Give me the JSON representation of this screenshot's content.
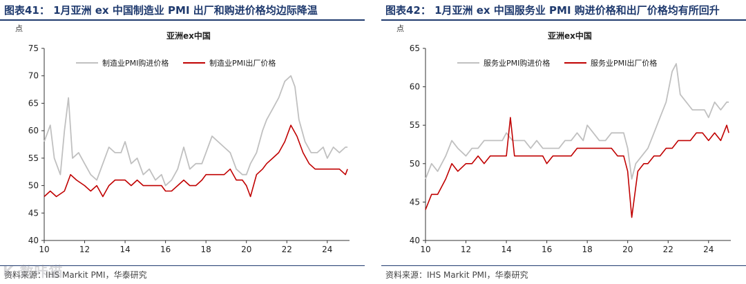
{
  "watermark": "K 数咔猫",
  "charts": [
    {
      "figure_title": "图表41： 1月亚洲 ex 中国制造业 PMI 出厂和购进价格均边际降温",
      "unit": "点",
      "source": "资料来源：IHS Markit PMI，华泰研究",
      "chart_data": {
        "type": "line",
        "title": "亚洲ex中国",
        "xlabel": "",
        "ylabel": "点",
        "x_ticks": [
          10,
          12,
          14,
          16,
          18,
          20,
          22,
          24
        ],
        "xlim": [
          10,
          25.1
        ],
        "ylim": [
          40,
          75
        ],
        "y_ticks": [
          40,
          45,
          50,
          55,
          60,
          65,
          70,
          75
        ],
        "grid": false,
        "legend": "top",
        "series": [
          {
            "name": "制造业PMI购进价格",
            "color": "#c0c0c0",
            "x": [
              10.0,
              10.3,
              10.5,
              10.8,
              11.0,
              11.2,
              11.4,
              11.7,
              12.0,
              12.3,
              12.6,
              12.9,
              13.2,
              13.5,
              13.8,
              14.0,
              14.3,
              14.6,
              14.9,
              15.2,
              15.5,
              15.8,
              16.0,
              16.3,
              16.6,
              16.9,
              17.2,
              17.5,
              17.8,
              18.0,
              18.3,
              18.6,
              18.9,
              19.2,
              19.5,
              19.8,
              20.0,
              20.2,
              20.5,
              20.8,
              21.0,
              21.3,
              21.6,
              21.9,
              22.2,
              22.4,
              22.6,
              22.9,
              23.2,
              23.5,
              23.8,
              24.0,
              24.3,
              24.6,
              24.9,
              25.0
            ],
            "values": [
              58,
              61,
              55,
              52,
              60,
              66,
              55,
              56,
              54,
              52,
              51,
              54,
              57,
              56,
              56,
              58,
              54,
              55,
              52,
              53,
              51,
              52,
              50,
              51,
              53,
              57,
              53,
              54,
              54,
              56,
              59,
              58,
              57,
              56,
              53,
              52,
              52,
              54,
              56,
              60,
              62,
              64,
              66,
              69,
              70,
              68,
              62,
              58,
              56,
              56,
              57,
              55,
              57,
              56,
              57,
              57
            ]
          },
          {
            "name": "制造业PMI出厂价格",
            "color": "#c00000",
            "x": [
              10.0,
              10.3,
              10.6,
              11.0,
              11.3,
              11.6,
              12.0,
              12.3,
              12.6,
              12.9,
              13.2,
              13.5,
              13.8,
              14.0,
              14.3,
              14.6,
              14.9,
              15.2,
              15.5,
              15.8,
              16.0,
              16.3,
              16.6,
              16.9,
              17.2,
              17.5,
              17.8,
              18.0,
              18.3,
              18.6,
              18.9,
              19.2,
              19.5,
              19.8,
              20.0,
              20.2,
              20.5,
              20.8,
              21.0,
              21.3,
              21.6,
              21.9,
              22.2,
              22.5,
              22.8,
              23.1,
              23.4,
              23.7,
              24.0,
              24.3,
              24.6,
              24.9,
              25.0
            ],
            "values": [
              48,
              49,
              48,
              49,
              52,
              51,
              50,
              49,
              50,
              48,
              50,
              51,
              51,
              51,
              50,
              51,
              50,
              50,
              50,
              50,
              49,
              49,
              50,
              51,
              50,
              50,
              51,
              52,
              52,
              52,
              52,
              53,
              51,
              51,
              50,
              48,
              52,
              53,
              54,
              55,
              56,
              58,
              61,
              59,
              56,
              54,
              53,
              53,
              53,
              53,
              53,
              52,
              53
            ]
          }
        ]
      }
    },
    {
      "figure_title": "图表42： 1月亚洲 ex 中国服务业 PMI 购进价格和出厂价格均有所回升",
      "unit": "点",
      "source": "资料来源：IHS Markit PMI，华泰研究",
      "chart_data": {
        "type": "line",
        "title": "亚洲ex中国",
        "xlabel": "",
        "ylabel": "点",
        "x_ticks": [
          10,
          12,
          14,
          16,
          18,
          20,
          22,
          24
        ],
        "xlim": [
          10,
          25.1
        ],
        "ylim": [
          40,
          65
        ],
        "y_ticks": [
          40,
          45,
          50,
          55,
          60,
          65
        ],
        "grid": false,
        "legend": "top",
        "series": [
          {
            "name": "服务业PMI购进价格",
            "color": "#c0c0c0",
            "x": [
              10.0,
              10.3,
              10.6,
              11.0,
              11.3,
              11.6,
              12.0,
              12.3,
              12.6,
              12.9,
              13.2,
              13.5,
              13.8,
              14.0,
              14.3,
              14.6,
              14.9,
              15.2,
              15.5,
              15.8,
              16.0,
              16.3,
              16.6,
              16.9,
              17.2,
              17.5,
              17.8,
              18.0,
              18.3,
              18.6,
              18.9,
              19.2,
              19.5,
              19.8,
              20.0,
              20.2,
              20.4,
              20.7,
              21.0,
              21.3,
              21.6,
              21.9,
              22.2,
              22.4,
              22.6,
              22.9,
              23.2,
              23.5,
              23.8,
              24.0,
              24.3,
              24.6,
              24.9,
              25.0
            ],
            "values": [
              48,
              50,
              49,
              51,
              53,
              52,
              51,
              52,
              52,
              53,
              53,
              53,
              53,
              54,
              53,
              53,
              53,
              52,
              53,
              52,
              52,
              52,
              52,
              53,
              53,
              54,
              53,
              55,
              54,
              53,
              53,
              54,
              54,
              54,
              52,
              48,
              50,
              51,
              52,
              54,
              56,
              58,
              62,
              63,
              59,
              58,
              57,
              57,
              57,
              56,
              58,
              57,
              58,
              58
            ]
          },
          {
            "name": "服务业PMI出厂价格",
            "color": "#c00000",
            "x": [
              10.0,
              10.3,
              10.6,
              11.0,
              11.3,
              11.6,
              12.0,
              12.3,
              12.6,
              12.9,
              13.2,
              13.5,
              13.8,
              14.0,
              14.2,
              14.4,
              14.6,
              14.9,
              15.2,
              15.5,
              15.8,
              16.0,
              16.3,
              16.6,
              16.9,
              17.2,
              17.5,
              17.8,
              18.0,
              18.3,
              18.6,
              18.9,
              19.2,
              19.5,
              19.8,
              20.0,
              20.2,
              20.5,
              20.8,
              21.0,
              21.3,
              21.6,
              21.9,
              22.2,
              22.5,
              22.8,
              23.1,
              23.4,
              23.7,
              24.0,
              24.3,
              24.6,
              24.9,
              25.0
            ],
            "values": [
              44,
              46,
              46,
              48,
              50,
              49,
              50,
              50,
              51,
              50,
              51,
              51,
              51,
              51,
              56,
              51,
              51,
              51,
              51,
              51,
              51,
              50,
              51,
              51,
              51,
              51,
              52,
              52,
              52,
              52,
              52,
              52,
              52,
              51,
              51,
              49,
              43,
              49,
              50,
              50,
              51,
              51,
              52,
              52,
              53,
              53,
              53,
              54,
              54,
              53,
              54,
              53,
              55,
              54
            ]
          }
        ]
      }
    }
  ]
}
